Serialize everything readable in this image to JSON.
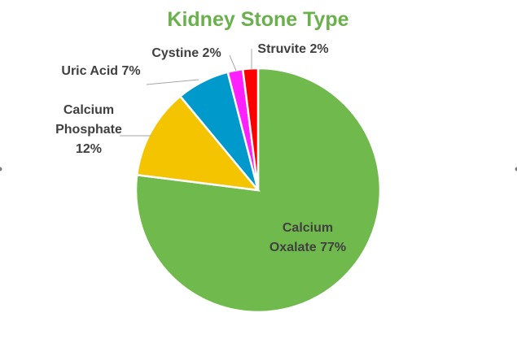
{
  "chart_data": {
    "type": "pie",
    "title": "Kidney Stone Type",
    "title_color": "#6ab04c",
    "slices": [
      {
        "name": "Calcium Oxalate",
        "value": 77,
        "label_lines": [
          "Calcium",
          "Oxalate 77%"
        ],
        "color": "#70b94c"
      },
      {
        "name": "Calcium Phosphate",
        "value": 12,
        "label_lines": [
          "Calcium",
          "Phosphate",
          "12%"
        ],
        "color": "#f5c400"
      },
      {
        "name": "Uric Acid",
        "value": 7,
        "label_lines": [
          "Uric Acid 7%"
        ],
        "color": "#0099cc"
      },
      {
        "name": "Cystine",
        "value": 2,
        "label_lines": [
          "Cystine 2%"
        ],
        "color": "#ff1fff"
      },
      {
        "name": "Struvite",
        "value": 2,
        "label_lines": [
          "Struvite 2%"
        ],
        "color": "#ff0000"
      }
    ],
    "start_angle_deg": 0,
    "direction": "clockwise",
    "legend": "none"
  }
}
